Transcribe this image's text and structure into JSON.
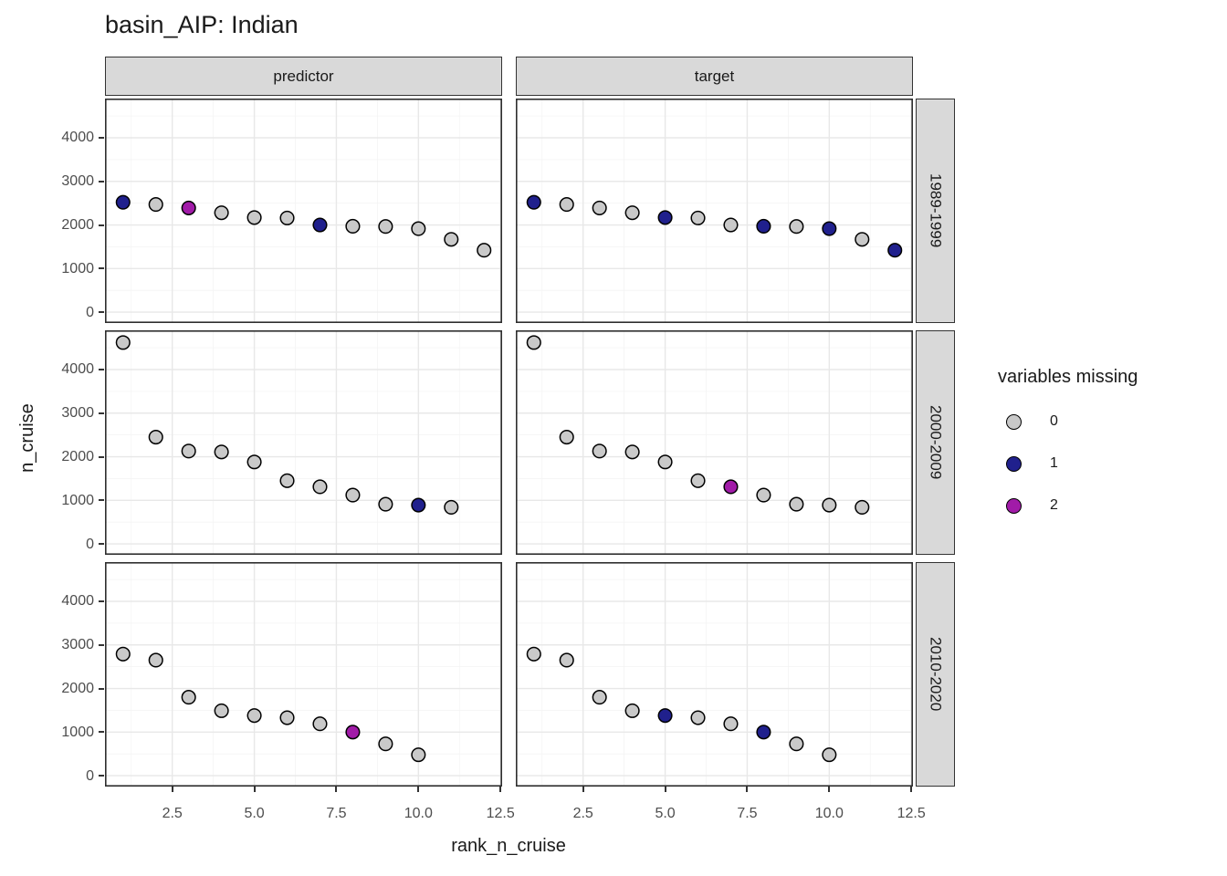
{
  "chart_data": {
    "type": "scatter",
    "title": "basin_AIP: Indian",
    "xlabel": "rank_n_cruise",
    "ylabel": "n_cruise",
    "col_facets": [
      "predictor",
      "target"
    ],
    "row_facets": [
      "1989-1999",
      "2000-2009",
      "2010-2020"
    ],
    "x_ticks": [
      2.5,
      5.0,
      7.5,
      10.0,
      12.5
    ],
    "x_minor": [
      1.25,
      3.75,
      6.25,
      8.75,
      11.25
    ],
    "y_ticks": [
      0,
      1000,
      2000,
      3000,
      4000
    ],
    "y_minor": [
      500,
      1500,
      2500,
      3500,
      4500
    ],
    "xlim": [
      0.45,
      12.55
    ],
    "ylim": [
      -250,
      4900
    ],
    "grid": "on",
    "legend": {
      "title": "variables missing",
      "position": "right",
      "entries": [
        {
          "label": "0",
          "color": "#C9C9C9"
        },
        {
          "label": "1",
          "color": "#20208D"
        },
        {
          "label": "2",
          "color": "#A11BA8"
        }
      ]
    },
    "missing_colors": {
      "0": "#C9C9C9",
      "1": "#20208D",
      "2": "#A11BA8"
    },
    "point_style": {
      "radius": 7.3,
      "stroke": "#000000",
      "stroke_width": 1.5
    },
    "colors": {
      "strip_bg": "#d9d9d9",
      "panel_bg": "#ffffff",
      "grid_major": "#e8e8e8",
      "grid_minor": "#f4f4f4",
      "panel_border": "#2e2e2e",
      "tick_text": "#4d4d4d"
    },
    "panels": [
      {
        "row": "1989-1999",
        "col": "predictor",
        "x": [
          1,
          2,
          3,
          4,
          5,
          6,
          7,
          8,
          9,
          10,
          11,
          12
        ],
        "y": [
          2520,
          2470,
          2390,
          2280,
          2170,
          2160,
          2000,
          1970,
          1965,
          1915,
          1670,
          1420
        ],
        "missing": [
          1,
          0,
          2,
          0,
          0,
          0,
          1,
          0,
          0,
          0,
          0,
          0
        ]
      },
      {
        "row": "1989-1999",
        "col": "target",
        "x": [
          1,
          2,
          3,
          4,
          5,
          6,
          7,
          8,
          9,
          10,
          11,
          12
        ],
        "y": [
          2520,
          2470,
          2390,
          2280,
          2170,
          2160,
          2000,
          1970,
          1965,
          1915,
          1670,
          1420
        ],
        "missing": [
          1,
          0,
          0,
          0,
          1,
          0,
          0,
          1,
          0,
          1,
          0,
          1
        ]
      },
      {
        "row": "2000-2009",
        "col": "predictor",
        "x": [
          1,
          2,
          3,
          4,
          5,
          6,
          7,
          8,
          9,
          10,
          11
        ],
        "y": [
          4620,
          2450,
          2130,
          2110,
          1880,
          1450,
          1310,
          1120,
          910,
          890,
          840
        ],
        "missing": [
          0,
          0,
          0,
          0,
          0,
          0,
          0,
          0,
          0,
          1,
          0
        ]
      },
      {
        "row": "2000-2009",
        "col": "target",
        "x": [
          1,
          2,
          3,
          4,
          5,
          6,
          7,
          8,
          9,
          10,
          11
        ],
        "y": [
          4620,
          2450,
          2130,
          2110,
          1880,
          1450,
          1310,
          1120,
          910,
          890,
          840
        ],
        "missing": [
          0,
          0,
          0,
          0,
          0,
          0,
          2,
          0,
          0,
          0,
          0
        ]
      },
      {
        "row": "2010-2020",
        "col": "predictor",
        "x": [
          1,
          2,
          3,
          4,
          5,
          6,
          7,
          8,
          9,
          10
        ],
        "y": [
          2790,
          2650,
          1800,
          1490,
          1380,
          1330,
          1190,
          1000,
          730,
          480
        ],
        "missing": [
          0,
          0,
          0,
          0,
          0,
          0,
          0,
          2,
          0,
          0
        ]
      },
      {
        "row": "2010-2020",
        "col": "target",
        "x": [
          1,
          2,
          3,
          4,
          5,
          6,
          7,
          8,
          9,
          10
        ],
        "y": [
          2790,
          2650,
          1800,
          1490,
          1380,
          1330,
          1190,
          1000,
          730,
          480
        ],
        "missing": [
          0,
          0,
          0,
          0,
          1,
          0,
          0,
          1,
          0,
          0
        ]
      }
    ]
  }
}
